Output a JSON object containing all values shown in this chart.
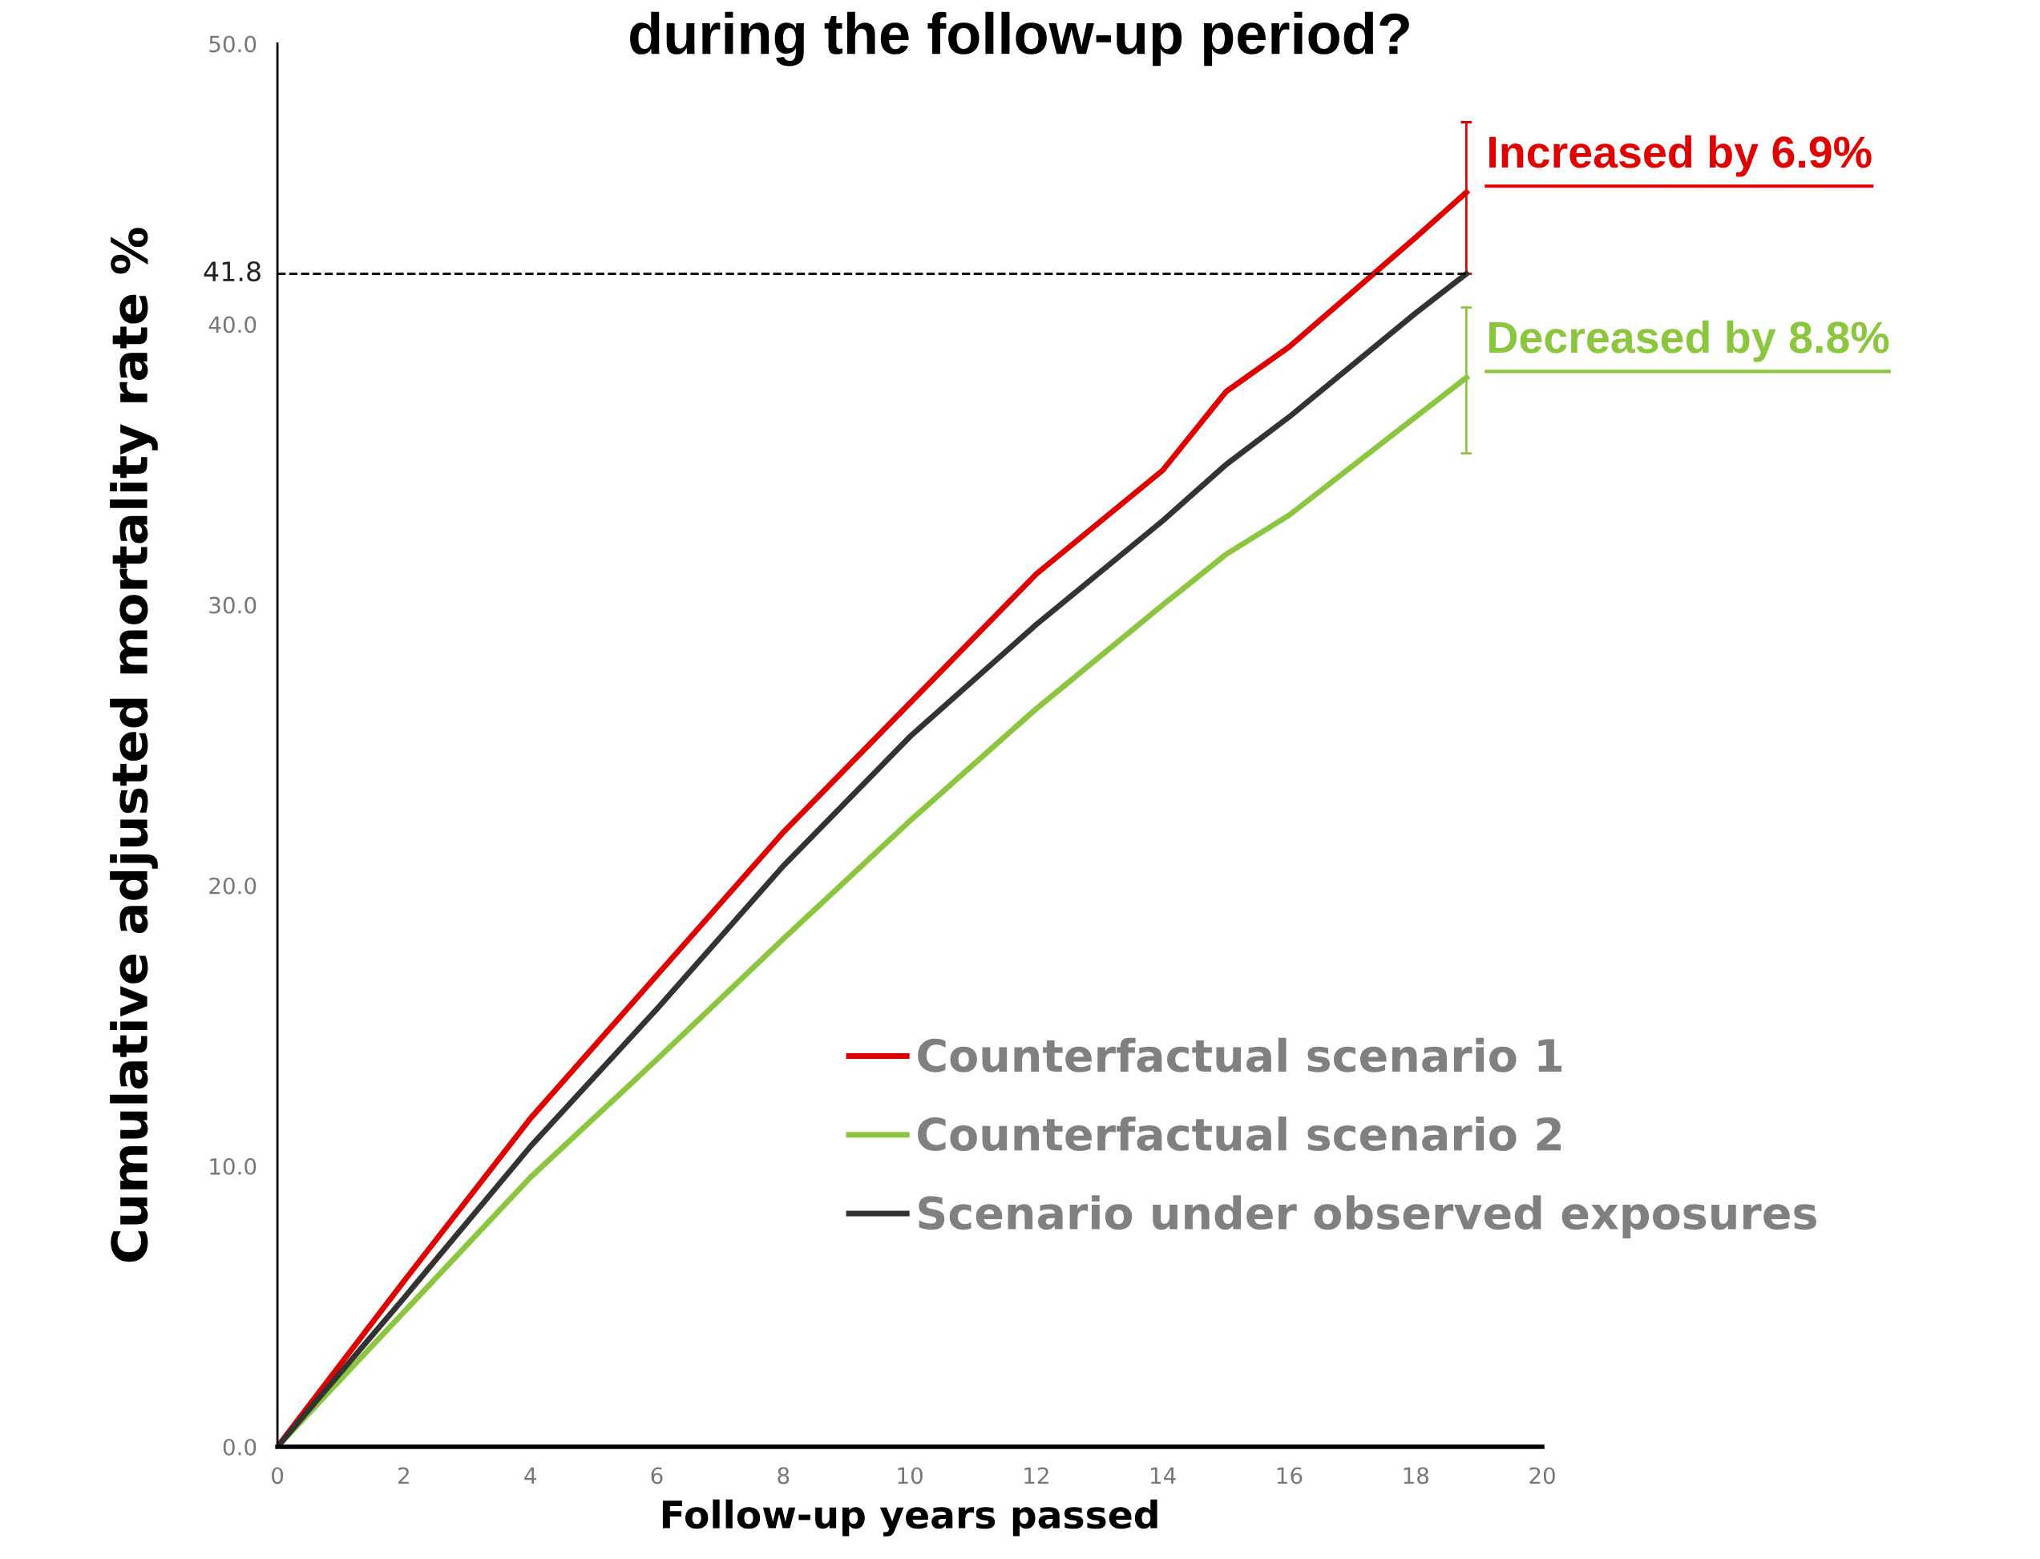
{
  "chart_data": {
    "type": "line",
    "title": "during the follow-up period?",
    "xlabel": "Follow-up years passed",
    "ylabel": "Cumulative adjusted mortality rate %",
    "x": [
      0,
      2,
      4,
      6,
      8,
      10,
      12,
      14,
      15,
      16,
      18,
      18.8
    ],
    "series": [
      {
        "name": "Counterfactual scenario 1",
        "color": "#e00000",
        "values": [
          0,
          5.9,
          11.7,
          16.8,
          21.9,
          26.5,
          31.1,
          34.8,
          37.6,
          39.2,
          43.1,
          44.7
        ],
        "errors": [
          null,
          null,
          null,
          null,
          null,
          null,
          null,
          null,
          null,
          null,
          null,
          [
            41.8,
            47.2
          ]
        ]
      },
      {
        "name": "Counterfactual scenario 2",
        "color": "#8cc63f",
        "values": [
          0,
          4.8,
          9.6,
          13.8,
          18.1,
          22.3,
          26.3,
          30.0,
          31.8,
          33.2,
          36.7,
          38.1
        ],
        "errors": [
          null,
          null,
          null,
          null,
          null,
          null,
          null,
          null,
          null,
          null,
          null,
          [
            35.4,
            40.6
          ]
        ]
      },
      {
        "name": "Scenario under observed exposures",
        "color": "#333333",
        "values": [
          0,
          5.3,
          10.7,
          15.6,
          20.7,
          25.3,
          29.3,
          33.0,
          35.0,
          36.7,
          40.4,
          41.8
        ]
      }
    ],
    "xlim": [
      0,
      20
    ],
    "xticks": [
      0,
      2,
      4,
      6,
      8,
      10,
      12,
      14,
      16,
      18,
      20
    ],
    "ylim": [
      0,
      50
    ],
    "yticks": [
      {
        "value": 0,
        "label": "0.0"
      },
      {
        "value": 10,
        "label": "10.0"
      },
      {
        "value": 20,
        "label": "20.0"
      },
      {
        "value": 30,
        "label": "30.0"
      },
      {
        "value": 40,
        "label": "40.0"
      },
      {
        "value": 50,
        "label": "50.0"
      }
    ],
    "ref_lines": [
      {
        "axis": "y",
        "value": 41.8,
        "label": "41.8",
        "color": "#000000",
        "line_style": "dashed"
      }
    ],
    "annotations": [
      {
        "text": "Increased by 6.9%",
        "x": 18.8,
        "y": 44.7
      },
      {
        "text": "Decreased by 8.8%",
        "x": 18.8,
        "y": 38.1
      }
    ],
    "legend": "right",
    "grid": false,
    "marker": "none",
    "line_style": "solid"
  }
}
